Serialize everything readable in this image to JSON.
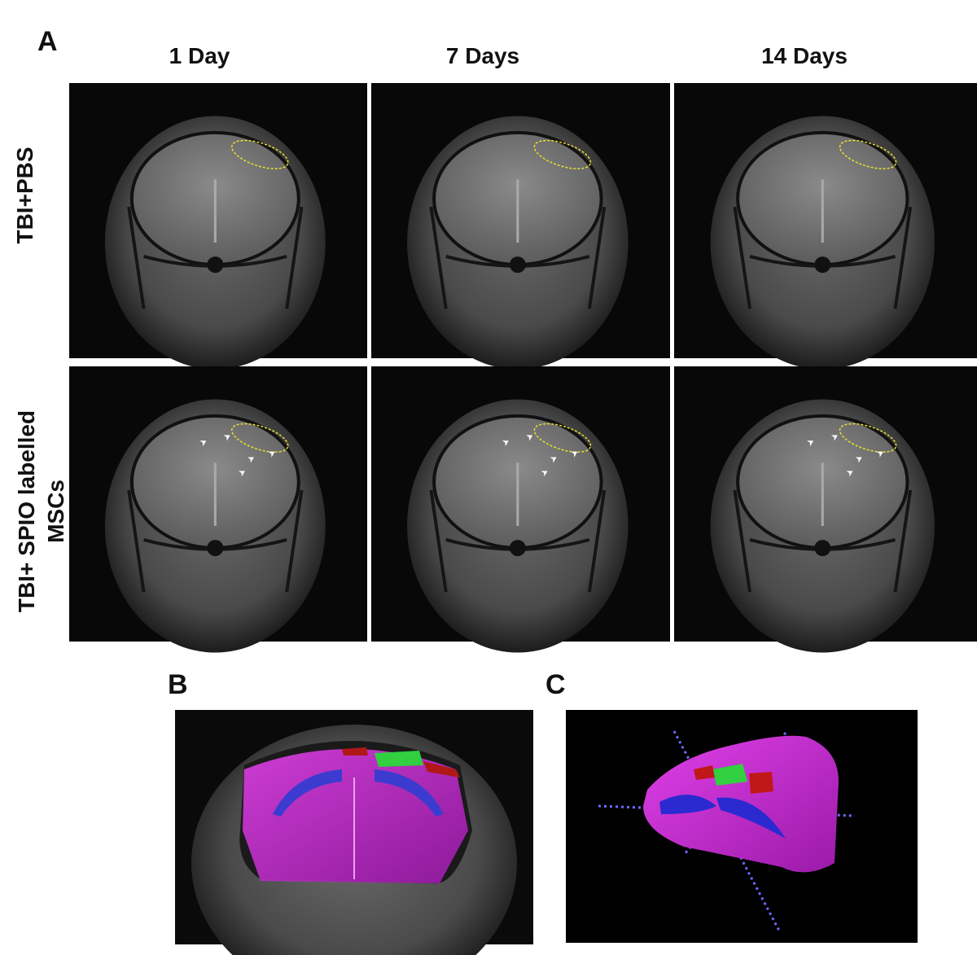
{
  "panel_a": {
    "label": "A",
    "columns": [
      "1 Day",
      "7 Days",
      "14 Days"
    ],
    "rows": [
      {
        "lines": [
          "TBI+PBS"
        ]
      },
      {
        "lines": [
          "TBI+ SPIO labelled",
          "MSCs"
        ]
      }
    ]
  },
  "panel_b": {
    "label": "B"
  },
  "panel_c": {
    "label": "C"
  }
}
